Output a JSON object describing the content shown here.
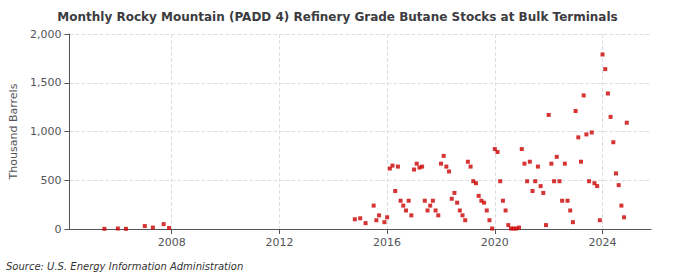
{
  "chart_data": {
    "type": "scatter",
    "title": "Monthly Rocky Mountain (PADD 4) Refinery Grade Butane Stocks at Bulk Terminals",
    "ylabel": "Thousand Barrels",
    "annotation": "Source: U.S. Energy Information Administration",
    "color": "#cc0000",
    "marker": "square",
    "grid": true,
    "xlim": [
      2004.2,
      2025.8
    ],
    "xticks": [
      2008,
      2012,
      2016,
      2020,
      2024
    ],
    "ylim": [
      0,
      2000
    ],
    "yticks": [
      0,
      500,
      {
        "value": 1000,
        "label": "1,000"
      },
      {
        "value": 1500,
        "label": "1,500"
      },
      {
        "value": 2000,
        "label": "2,000"
      }
    ],
    "x": [
      2005.5,
      2006.0,
      2006.3,
      2007.0,
      2007.3,
      2007.7,
      2007.9,
      2014.8,
      2015.0,
      2015.2,
      2015.5,
      2015.6,
      2015.7,
      2015.9,
      2016.0,
      2016.1,
      2016.2,
      2016.3,
      2016.4,
      2016.5,
      2016.6,
      2016.7,
      2016.8,
      2016.9,
      2017.0,
      2017.1,
      2017.2,
      2017.3,
      2017.4,
      2017.5,
      2017.6,
      2017.7,
      2017.8,
      2017.9,
      2018.0,
      2018.1,
      2018.2,
      2018.3,
      2018.4,
      2018.5,
      2018.6,
      2018.7,
      2018.8,
      2018.9,
      2019.0,
      2019.1,
      2019.2,
      2019.3,
      2019.4,
      2019.5,
      2019.6,
      2019.7,
      2019.8,
      2019.9,
      2020.0,
      2020.1,
      2020.2,
      2020.3,
      2020.4,
      2020.5,
      2020.6,
      2020.7,
      2020.8,
      2020.9,
      2021.0,
      2021.1,
      2021.2,
      2021.3,
      2021.4,
      2021.5,
      2021.6,
      2021.7,
      2021.8,
      2021.9,
      2022.0,
      2022.1,
      2022.2,
      2022.3,
      2022.4,
      2022.5,
      2022.6,
      2022.7,
      2022.8,
      2022.9,
      2023.0,
      2023.1,
      2023.2,
      2023.3,
      2023.4,
      2023.5,
      2023.6,
      2023.7,
      2023.8,
      2023.9,
      2024.0,
      2024.1,
      2024.2,
      2024.3,
      2024.4,
      2024.5,
      2024.6,
      2024.7,
      2024.8,
      2024.9
    ],
    "values": [
      2,
      5,
      2,
      30,
      15,
      50,
      10,
      100,
      110,
      60,
      240,
      90,
      140,
      70,
      120,
      620,
      650,
      390,
      640,
      290,
      240,
      190,
      290,
      140,
      610,
      670,
      630,
      640,
      290,
      190,
      240,
      290,
      190,
      140,
      670,
      750,
      640,
      590,
      310,
      370,
      270,
      190,
      140,
      90,
      690,
      640,
      490,
      470,
      340,
      290,
      270,
      190,
      90,
      5,
      820,
      790,
      490,
      290,
      190,
      40,
      5,
      5,
      5,
      15,
      820,
      670,
      490,
      690,
      390,
      490,
      640,
      440,
      370,
      40,
      1170,
      670,
      490,
      740,
      490,
      290,
      670,
      290,
      190,
      70,
      1210,
      940,
      690,
      1370,
      970,
      490,
      990,
      470,
      440,
      90,
      1790,
      1640,
      1390,
      1150,
      890,
      570,
      450,
      240,
      120,
      1090
    ]
  }
}
